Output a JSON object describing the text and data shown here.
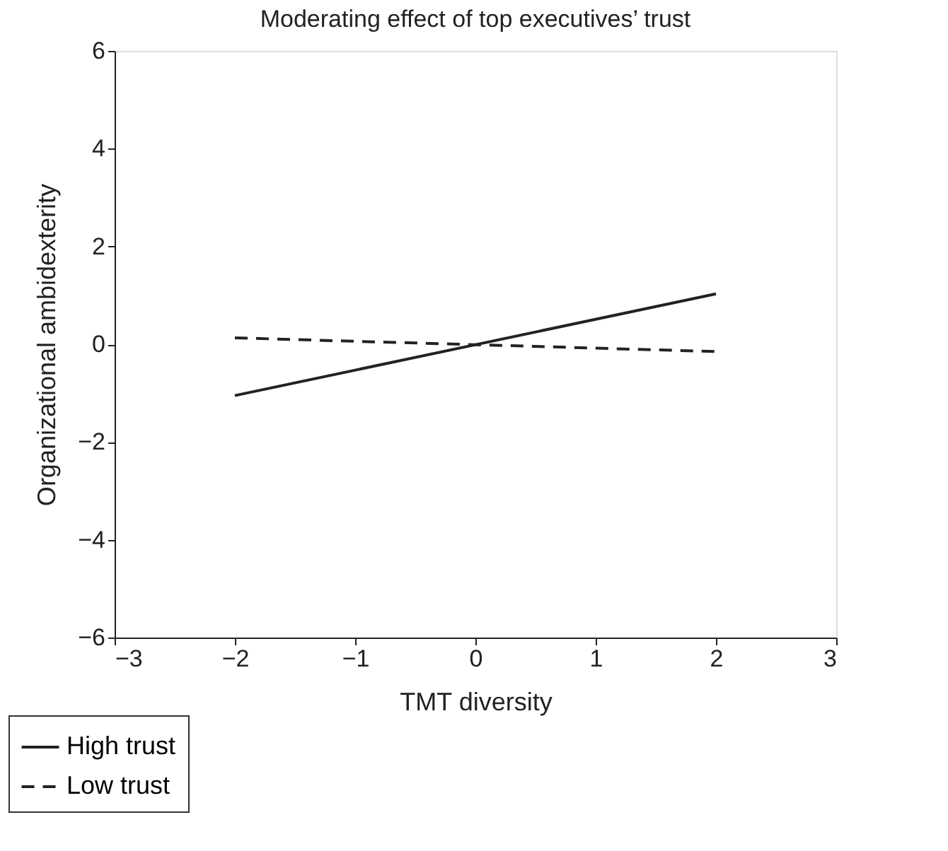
{
  "chart_data": {
    "type": "line",
    "title": "Moderating effect of top executives’ trust",
    "xlabel": "TMT diversity",
    "ylabel": "Organizational ambidexterity",
    "x": [
      -2,
      2
    ],
    "series": [
      {
        "name": "High trust",
        "color": "#222222",
        "values": [
          -1.05,
          1.03
        ],
        "line_style": "solid"
      },
      {
        "name": "Low trust",
        "color": "#222222",
        "values": [
          0.13,
          -0.15
        ],
        "line_style": "dashed"
      }
    ],
    "xlim": [
      -3,
      3
    ],
    "xticks": [
      -3,
      -2,
      -1,
      0,
      1,
      2,
      3
    ],
    "ylim": [
      -6,
      6
    ],
    "yticks": [
      -6,
      -4,
      -2,
      0,
      2,
      4,
      6
    ],
    "grid": false,
    "legend": "bottom left",
    "marker": "none"
  }
}
